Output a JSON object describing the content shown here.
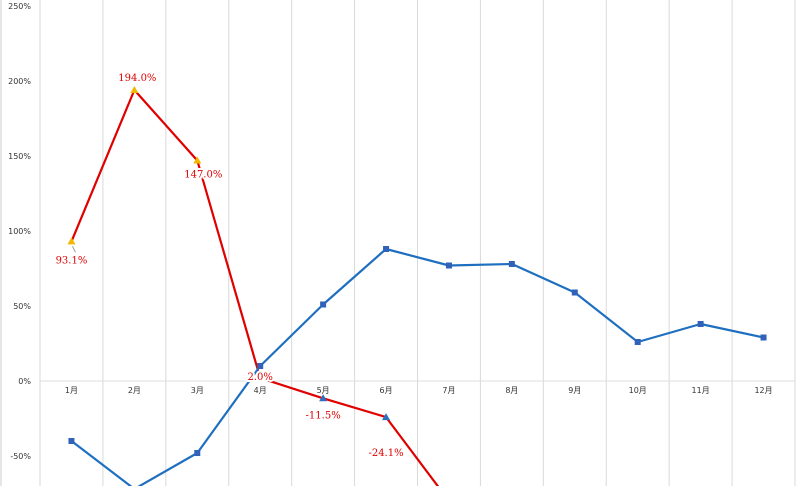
{
  "chart_data": {
    "type": "line",
    "categories": [
      "1月",
      "2月",
      "3月",
      "4月",
      "5月",
      "6月",
      "7月",
      "8月",
      "9月",
      "10月",
      "11月",
      "12月"
    ],
    "ylim": [
      -70,
      250
    ],
    "yticks": [
      -50,
      0,
      50,
      100,
      150,
      200,
      250
    ],
    "ytick_labels": [
      "-50%",
      "0%",
      "50%",
      "100%",
      "150%",
      "200%",
      "250%"
    ],
    "grid": true,
    "series": [
      {
        "color": "#e00000",
        "marker": "triangle",
        "marker_colors": [
          "#f2b800",
          "#f2b800",
          "#f2b800",
          "#2f6fc0",
          "#2f6fc0",
          "#2f6fc0",
          "#2f6fc0"
        ],
        "values": [
          93.1,
          194.0,
          147.0,
          2.0,
          -11.5,
          -24.1,
          -80,
          null,
          null,
          null,
          null,
          null
        ],
        "data_labels": [
          "93.1%",
          "194.0%",
          "147.0%",
          "2.0%",
          "-11.5%",
          "-24.1%",
          "",
          "",
          "",
          "",
          "",
          ""
        ]
      },
      {
        "color": "#1f6fc0",
        "marker": "square",
        "values": [
          -40,
          -72,
          -48,
          10,
          51,
          88,
          77,
          78,
          59,
          26,
          38,
          29
        ]
      }
    ]
  }
}
